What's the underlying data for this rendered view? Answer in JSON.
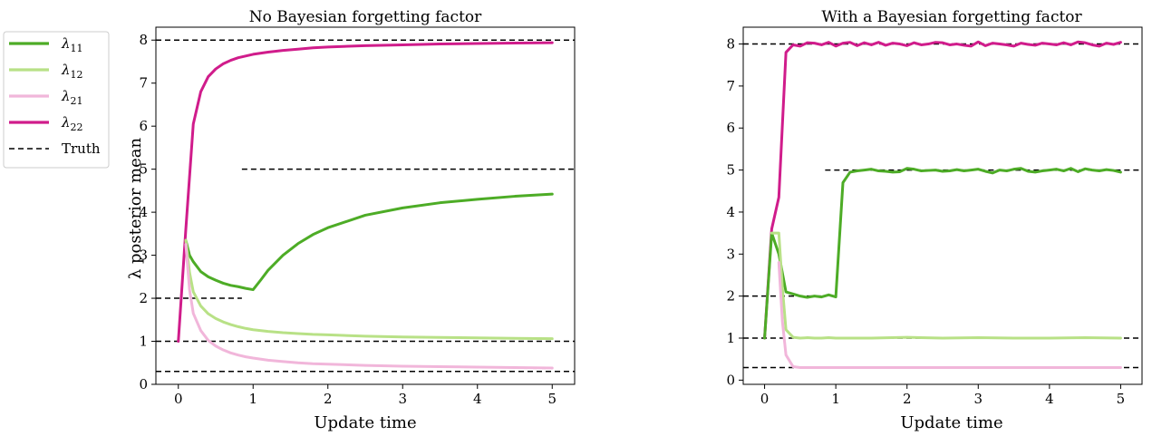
{
  "legend": {
    "entries": [
      {
        "key": "l11",
        "symbol": "λ",
        "sub": "11",
        "color": "#4dac26",
        "dashed": false
      },
      {
        "key": "l12",
        "symbol": "λ",
        "sub": "12",
        "color": "#b8e186",
        "dashed": false
      },
      {
        "key": "l21",
        "symbol": "λ",
        "sub": "21",
        "color": "#f1b6da",
        "dashed": false
      },
      {
        "key": "l22",
        "symbol": "λ",
        "sub": "22",
        "color": "#d01c8b",
        "dashed": false
      },
      {
        "key": "truth",
        "label": "Truth",
        "color": "#000000",
        "dashed": true
      }
    ]
  },
  "chart_data": [
    {
      "type": "line",
      "title": "No Bayesian forgetting factor",
      "xlabel": "Update time",
      "ylabel": "λ posterior mean",
      "xlim": [
        -0.3,
        5.3
      ],
      "ylim": [
        0,
        8.3
      ],
      "xticks": [
        "0",
        "1",
        "2",
        "3",
        "4",
        "5"
      ],
      "yticks": [
        "0",
        "1",
        "2",
        "3",
        "4",
        "5",
        "6",
        "7",
        "8"
      ],
      "truth_segments": [
        {
          "x": [
            -0.3,
            0.85
          ],
          "y": 2
        },
        {
          "x": [
            0.85,
            5.3
          ],
          "y": 5
        },
        {
          "x": [
            -0.3,
            5.3
          ],
          "y": 1
        },
        {
          "x": [
            -0.3,
            5.3
          ],
          "y": 0.3
        },
        {
          "x": [
            -0.3,
            5.3
          ],
          "y": 8
        }
      ],
      "series": [
        {
          "key": "l22",
          "x": [
            0,
            0.1,
            0.2,
            0.3,
            0.4,
            0.5,
            0.6,
            0.7,
            0.8,
            0.9,
            1.0,
            1.2,
            1.4,
            1.6,
            1.8,
            2.0,
            2.5,
            3.0,
            3.5,
            4.0,
            4.5,
            5.0
          ],
          "y": [
            1.0,
            3.6,
            6.05,
            6.8,
            7.15,
            7.33,
            7.45,
            7.53,
            7.59,
            7.63,
            7.67,
            7.72,
            7.76,
            7.79,
            7.82,
            7.84,
            7.87,
            7.89,
            7.91,
            7.92,
            7.93,
            7.94
          ]
        },
        {
          "key": "l11",
          "x": [
            0.1,
            0.15,
            0.2,
            0.3,
            0.4,
            0.5,
            0.6,
            0.7,
            0.8,
            0.9,
            1.0,
            1.1,
            1.2,
            1.4,
            1.6,
            1.8,
            2.0,
            2.5,
            3.0,
            3.5,
            4.0,
            4.5,
            5.0
          ],
          "y": [
            3.35,
            3.0,
            2.85,
            2.62,
            2.5,
            2.42,
            2.35,
            2.3,
            2.27,
            2.23,
            2.2,
            2.42,
            2.65,
            3.0,
            3.27,
            3.48,
            3.64,
            3.93,
            4.1,
            4.22,
            4.3,
            4.37,
            4.42
          ]
        },
        {
          "key": "l12",
          "x": [
            0.1,
            0.15,
            0.2,
            0.3,
            0.4,
            0.5,
            0.6,
            0.7,
            0.8,
            0.9,
            1.0,
            1.2,
            1.4,
            1.6,
            1.8,
            2.0,
            2.5,
            3.0,
            3.5,
            4.0,
            4.5,
            5.0
          ],
          "y": [
            3.35,
            2.6,
            2.15,
            1.82,
            1.64,
            1.53,
            1.45,
            1.39,
            1.34,
            1.3,
            1.27,
            1.23,
            1.2,
            1.18,
            1.16,
            1.15,
            1.12,
            1.1,
            1.09,
            1.08,
            1.07,
            1.06
          ]
        },
        {
          "key": "l21",
          "x": [
            0.1,
            0.15,
            0.2,
            0.3,
            0.4,
            0.5,
            0.6,
            0.7,
            0.8,
            0.9,
            1.0,
            1.2,
            1.4,
            1.6,
            1.8,
            2.0,
            2.5,
            3.0,
            3.5,
            4.0,
            4.5,
            5.0
          ],
          "y": [
            3.25,
            2.2,
            1.65,
            1.25,
            1.02,
            0.89,
            0.8,
            0.73,
            0.68,
            0.64,
            0.61,
            0.56,
            0.53,
            0.5,
            0.48,
            0.47,
            0.44,
            0.42,
            0.41,
            0.4,
            0.39,
            0.38
          ]
        }
      ]
    },
    {
      "type": "line",
      "title": "With a Bayesian forgetting factor",
      "xlabel": "Update time",
      "ylabel": "",
      "xlim": [
        -0.3,
        5.3
      ],
      "ylim": [
        -0.1,
        8.4
      ],
      "xticks": [
        "0",
        "1",
        "2",
        "3",
        "4",
        "5"
      ],
      "yticks": [
        "0",
        "1",
        "2",
        "3",
        "4",
        "5",
        "6",
        "7",
        "8"
      ],
      "truth_segments": [
        {
          "x": [
            -0.3,
            0.85
          ],
          "y": 2
        },
        {
          "x": [
            0.85,
            5.3
          ],
          "y": 5
        },
        {
          "x": [
            -0.3,
            5.3
          ],
          "y": 1
        },
        {
          "x": [
            -0.3,
            5.3
          ],
          "y": 0.3
        },
        {
          "x": [
            -0.3,
            5.3
          ],
          "y": 8
        }
      ],
      "series": [
        {
          "key": "l22",
          "x": [
            0,
            0.1,
            0.2,
            0.3,
            0.4,
            0.5,
            0.6,
            0.7,
            0.8,
            0.9,
            1.0,
            1.1,
            1.2,
            1.3,
            1.4,
            1.5,
            1.6,
            1.7,
            1.8,
            1.9,
            2.0,
            2.1,
            2.2,
            2.3,
            2.4,
            2.5,
            2.6,
            2.7,
            2.8,
            2.9,
            3.0,
            3.1,
            3.2,
            3.3,
            3.4,
            3.5,
            3.6,
            3.7,
            3.8,
            3.9,
            4.0,
            4.1,
            4.2,
            4.3,
            4.4,
            4.5,
            4.6,
            4.7,
            4.8,
            4.9,
            5.0
          ],
          "y": [
            1.0,
            3.6,
            4.35,
            7.8,
            7.98,
            7.95,
            8.03,
            8.02,
            7.98,
            8.04,
            7.95,
            8.02,
            8.04,
            7.96,
            8.03,
            7.98,
            8.04,
            7.97,
            8.02,
            8.0,
            7.96,
            8.03,
            7.98,
            8.0,
            8.04,
            8.03,
            7.98,
            8.0,
            7.97,
            7.95,
            8.05,
            7.96,
            8.02,
            8.0,
            7.98,
            7.95,
            8.02,
            7.99,
            7.97,
            8.02,
            8.0,
            7.98,
            8.03,
            7.98,
            8.05,
            8.03,
            7.98,
            7.95,
            8.02,
            7.99,
            8.04
          ]
        },
        {
          "key": "l11",
          "x": [
            0,
            0.1,
            0.2,
            0.3,
            0.4,
            0.5,
            0.6,
            0.7,
            0.8,
            0.9,
            1.0,
            1.1,
            1.2,
            1.3,
            1.4,
            1.5,
            1.6,
            1.7,
            1.8,
            1.9,
            2.0,
            2.1,
            2.2,
            2.3,
            2.4,
            2.5,
            2.6,
            2.7,
            2.8,
            2.9,
            3.0,
            3.1,
            3.2,
            3.3,
            3.4,
            3.5,
            3.6,
            3.7,
            3.8,
            3.9,
            4.0,
            4.1,
            4.2,
            4.3,
            4.4,
            4.5,
            4.6,
            4.7,
            4.8,
            4.9,
            5.0
          ],
          "y": [
            1.0,
            3.5,
            3.0,
            2.1,
            2.05,
            2.0,
            1.97,
            2.0,
            1.98,
            2.03,
            1.98,
            4.7,
            4.95,
            4.98,
            5.0,
            5.02,
            4.98,
            4.97,
            4.95,
            4.96,
            5.04,
            5.02,
            4.98,
            4.99,
            5.0,
            4.97,
            4.98,
            5.01,
            4.98,
            5.0,
            5.02,
            4.97,
            4.93,
            5.0,
            4.98,
            5.02,
            5.04,
            4.97,
            4.95,
            4.98,
            5.0,
            5.02,
            4.98,
            5.04,
            4.96,
            5.03,
            5.0,
            4.98,
            5.01,
            4.99,
            4.95
          ]
        },
        {
          "key": "l12",
          "x": [
            0.1,
            0.2,
            0.25,
            0.3,
            0.4,
            0.5,
            0.6,
            0.7,
            0.8,
            0.9,
            1.0,
            1.5,
            2.0,
            2.5,
            3.0,
            3.5,
            4.0,
            4.5,
            5.0
          ],
          "y": [
            3.5,
            3.5,
            2.2,
            1.2,
            1.02,
            1.0,
            1.01,
            1.0,
            1.0,
            1.01,
            1.0,
            1.0,
            1.02,
            1.0,
            1.01,
            1.0,
            1.0,
            1.01,
            1.0
          ]
        },
        {
          "key": "l21",
          "x": [
            0.2,
            0.25,
            0.3,
            0.4,
            0.5,
            0.6,
            0.7,
            0.8,
            1.0,
            1.5,
            2.0,
            2.5,
            3.0,
            3.5,
            4.0,
            4.5,
            5.0
          ],
          "y": [
            2.8,
            1.4,
            0.6,
            0.32,
            0.3,
            0.3,
            0.3,
            0.3,
            0.3,
            0.3,
            0.3,
            0.3,
            0.3,
            0.3,
            0.3,
            0.3,
            0.3
          ]
        }
      ]
    }
  ]
}
